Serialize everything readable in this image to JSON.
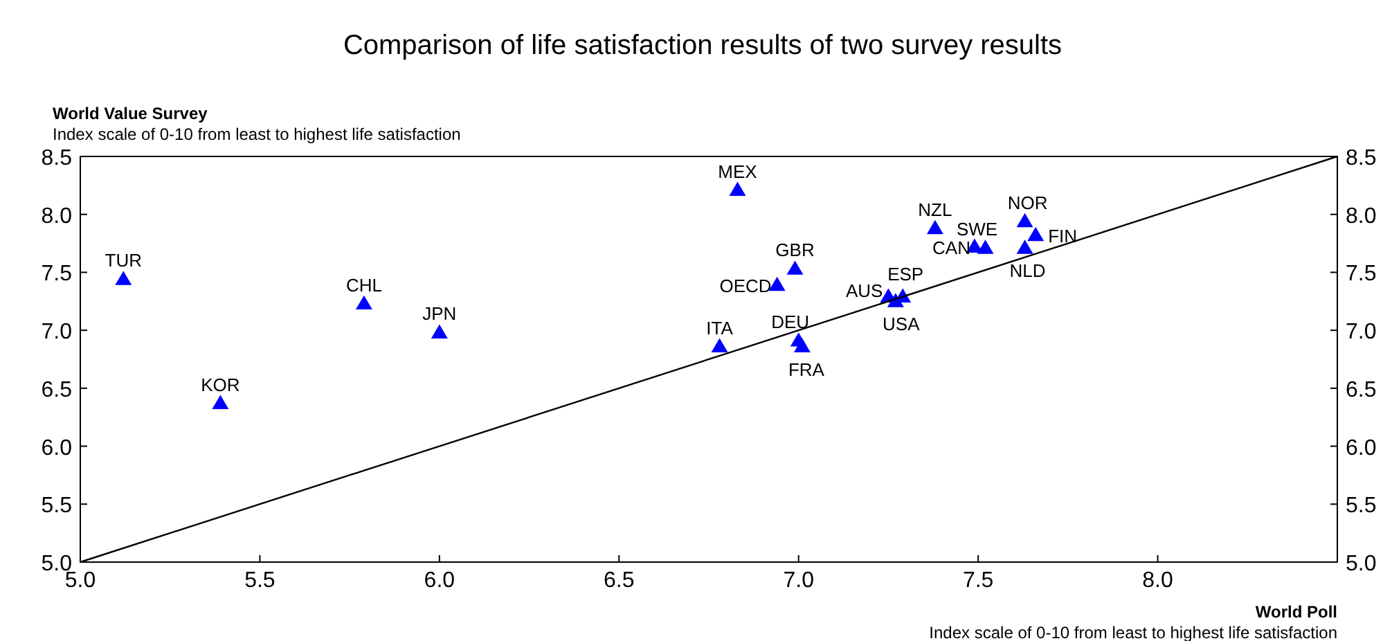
{
  "chart_data": {
    "type": "scatter",
    "title": "Comparison of life satisfaction results of two survey results",
    "xlabel": "World Poll",
    "ylabel": "World Value Survey",
    "xlim": [
      5,
      8.5
    ],
    "xticks": [
      {
        "value": 5,
        "label": "5.0"
      },
      5.5,
      {
        "value": 6,
        "label": "6.0"
      },
      6.5,
      {
        "value": 7,
        "label": "7.0"
      },
      7.5,
      {
        "value": 8,
        "label": "8.0"
      }
    ],
    "ylim": [
      5,
      8.5
    ],
    "yticks": [
      {
        "value": 5,
        "label": "5.0"
      },
      5.5,
      {
        "value": 6,
        "label": "6.0"
      },
      6.5,
      {
        "value": 7,
        "label": "7.0"
      },
      7.5,
      {
        "value": 8,
        "label": "8.0"
      },
      8.5
    ],
    "y2lim": [
      5,
      8.5
    ],
    "y2ticks": [
      {
        "value": 5,
        "label": "5.0"
      },
      5.5,
      {
        "value": 6,
        "label": "6.0"
      },
      6.5,
      {
        "value": 7,
        "label": "7.0"
      },
      7.5,
      {
        "value": 8,
        "label": "8.0"
      },
      8.5
    ],
    "grid": false,
    "marker": "triangle",
    "series": [
      {
        "color": "#0000ff",
        "x": [
          5.12,
          5.39,
          5.79,
          6.0,
          6.83,
          6.78,
          6.99,
          6.94,
          7.0,
          7.01,
          7.25,
          7.27,
          7.29,
          7.38,
          7.49,
          7.52,
          7.63,
          7.63,
          7.66
        ],
        "values": [
          7.44,
          6.37,
          7.23,
          6.98,
          8.21,
          6.86,
          7.53,
          7.39,
          6.91,
          6.86,
          7.29,
          7.25,
          7.29,
          7.88,
          7.72,
          7.71,
          7.94,
          7.71,
          7.82
        ]
      },
      {
        "type": "line",
        "color": "#000000",
        "x": [
          5,
          8.5
        ],
        "values": [
          5,
          8.5
        ],
        "marker": "none"
      }
    ],
    "annotations": [
      {
        "text": "TUR",
        "x": 5.12,
        "y": 7.44
      },
      {
        "text": "KOR",
        "x": 5.39,
        "y": 6.37
      },
      {
        "text": "CHL",
        "x": 5.79,
        "y": 7.23
      },
      {
        "text": "JPN",
        "x": 6.0,
        "y": 6.98
      },
      {
        "text": "MEX",
        "x": 6.83,
        "y": 8.21
      },
      {
        "text": "ITA",
        "x": 6.78,
        "y": 6.86
      },
      {
        "text": "GBR",
        "x": 6.99,
        "y": 7.53
      },
      {
        "text": "OECD",
        "x": 6.94,
        "y": 7.39
      },
      {
        "text": "DEU",
        "x": 7.0,
        "y": 6.91
      },
      {
        "text": "FRA",
        "x": 7.01,
        "y": 6.86
      },
      {
        "text": "AUS",
        "x": 7.25,
        "y": 7.29
      },
      {
        "text": "USA",
        "x": 7.27,
        "y": 7.25
      },
      {
        "text": "ESP",
        "x": 7.29,
        "y": 7.29
      },
      {
        "text": "NZL",
        "x": 7.38,
        "y": 7.88
      },
      {
        "text": "CAN",
        "x": 7.49,
        "y": 7.72
      },
      {
        "text": "SWE",
        "x": 7.52,
        "y": 7.71
      },
      {
        "text": "NOR",
        "x": 7.63,
        "y": 7.94
      },
      {
        "text": "NLD",
        "x": 7.63,
        "y": 7.71
      },
      {
        "text": "FIN",
        "x": 7.66,
        "y": 7.82
      },
      "Index scale of 0-10 from least to highest life satisfaction",
      "Index scale of 0-10 from least to highest life satisfaction"
    ]
  }
}
